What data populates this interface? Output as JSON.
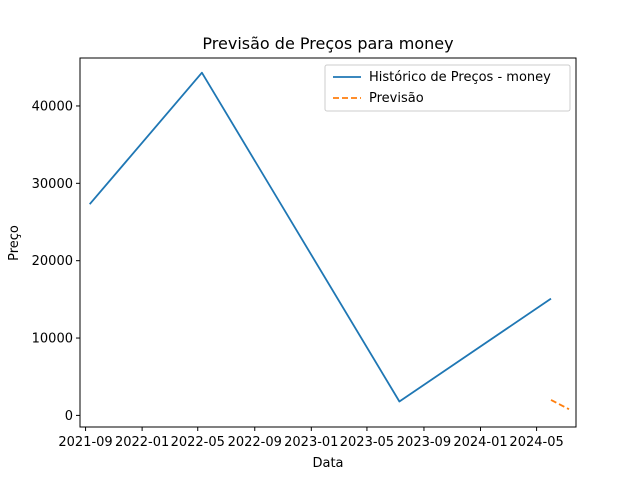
{
  "chart_data": {
    "type": "line",
    "title": "Previsão de Preços para money",
    "xlabel": "Data",
    "ylabel": "Preço",
    "x_ticks": [
      "2021-09",
      "2022-01",
      "2022-05",
      "2022-09",
      "2023-01",
      "2023-05",
      "2023-09",
      "2024-01",
      "2024-05"
    ],
    "y_ticks": [
      0,
      10000,
      20000,
      30000,
      40000
    ],
    "ylim": [
      -1500,
      46200
    ],
    "xlim": [
      "2021-08-20",
      "2024-07-25"
    ],
    "grid": false,
    "legend_position": "top-right",
    "series": [
      {
        "name": "Histórico de Preços - money",
        "style": "solid",
        "color": "#1f77b4",
        "points": [
          {
            "x": "2021-09-10",
            "y": 27300
          },
          {
            "x": "2022-05-10",
            "y": 44300
          },
          {
            "x": "2023-07-10",
            "y": 1800
          },
          {
            "x": "2024-06-01",
            "y": 15100
          }
        ]
      },
      {
        "name": "Previsão",
        "style": "dashed",
        "color": "#ff7f0e",
        "points": [
          {
            "x": "2024-06-01",
            "y": 2000
          },
          {
            "x": "2024-07-10",
            "y": 800
          }
        ]
      }
    ]
  }
}
